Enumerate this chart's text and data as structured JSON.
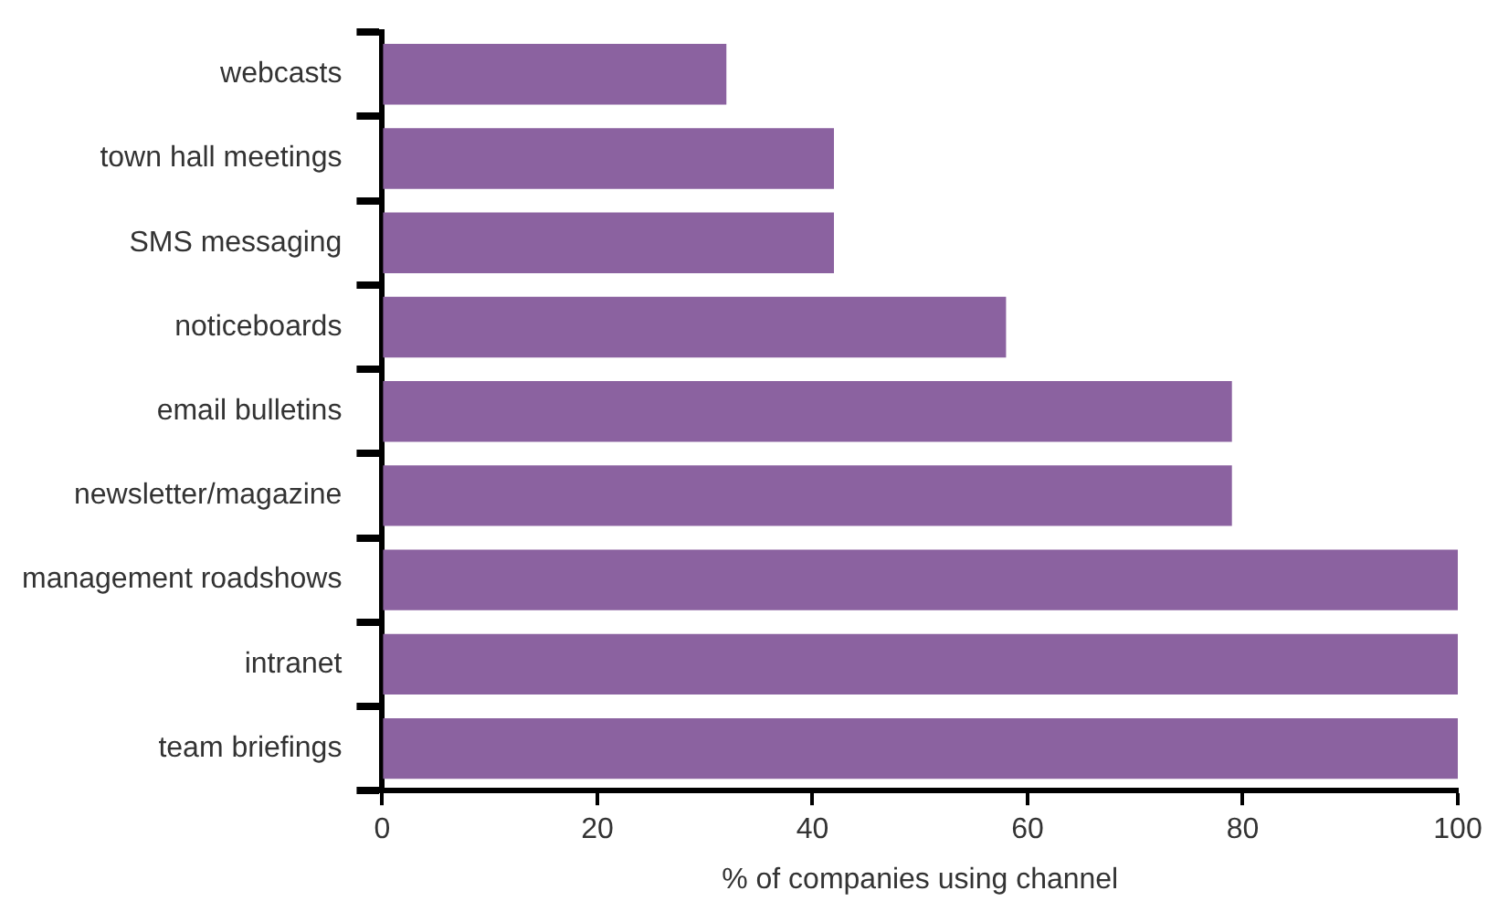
{
  "chart_data": {
    "type": "bar",
    "orientation": "horizontal",
    "xlabel": "% of companies using channel",
    "categories": [
      "webcasts",
      "town hall meetings",
      "SMS messaging",
      "noticeboards",
      "email bulletins",
      "newsletter/magazine",
      "management roadshows",
      "intranet",
      "team briefings"
    ],
    "values": [
      32,
      42,
      42,
      58,
      79,
      79,
      100,
      100,
      100
    ],
    "color": "#8b62a0",
    "xlim": [
      0,
      100
    ],
    "xticks": [
      0,
      20,
      40,
      60,
      80,
      100
    ],
    "grid": false,
    "legend": false
  }
}
